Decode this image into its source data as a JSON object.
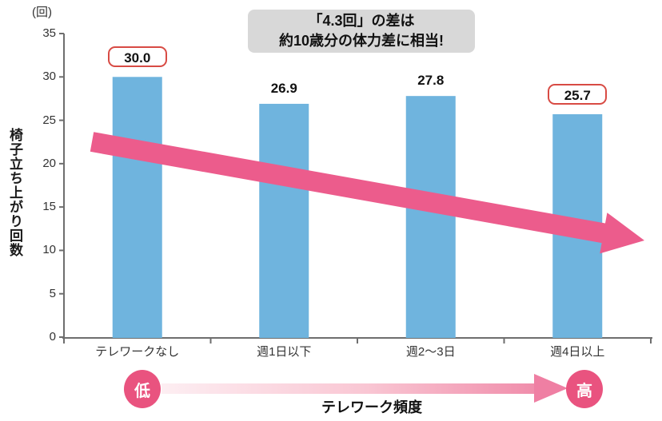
{
  "colors": {
    "bar": "#6fb4de",
    "trend_arrow": "#ec5c8c",
    "axis": "#6e6e6e",
    "value_box_border": "#d84b44",
    "freq_circle": "#e9537f",
    "annotation_bg": "#d8d8d8"
  },
  "chart_data": {
    "type": "bar",
    "unit_label": "(回)",
    "ylabel": "椅子立ち上がり回数",
    "categories": [
      "テレワークなし",
      "週1日以下",
      "週2〜3日",
      "週4日以上"
    ],
    "values": [
      30.0,
      26.9,
      27.8,
      25.7
    ],
    "value_labels": [
      "30.0",
      "26.9",
      "27.8",
      "25.7"
    ],
    "boxed_labels": [
      true,
      false,
      false,
      true
    ],
    "ylim": [
      0,
      35
    ],
    "yticks": [
      0,
      5,
      10,
      15,
      20,
      25,
      30,
      35
    ],
    "grid": false,
    "legend": null,
    "trend_arrow": "descending-left-to-right",
    "annotation": {
      "line1": "「4.3回」の差は",
      "line2": "約10歳分の体力差に相当!"
    },
    "frequency_axis": {
      "low_label": "低",
      "high_label": "高",
      "title": "テレワーク頻度"
    }
  }
}
